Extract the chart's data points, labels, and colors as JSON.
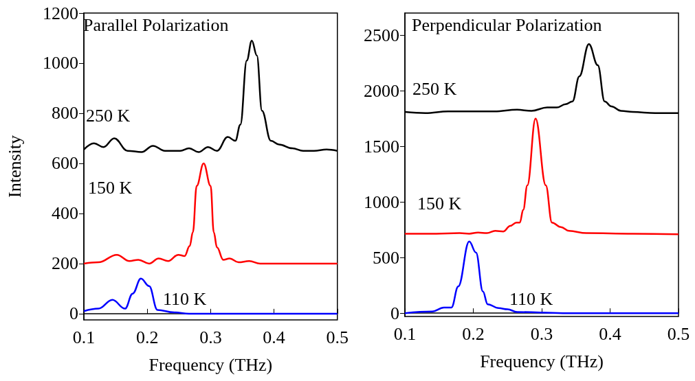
{
  "chart_data": [
    {
      "type": "line",
      "title": "Parallel Polarization",
      "annotations": [
        "250 K",
        "150 K",
        "110 K"
      ],
      "xlabel": "Frequency (THz)",
      "ylabel": "Intensity",
      "xlim": [
        0.1,
        0.5
      ],
      "xticks": [
        0.1,
        0.2,
        0.3,
        0.4,
        0.5
      ],
      "ylim": [
        -25,
        1200
      ],
      "yticks": [
        0,
        200,
        400,
        600,
        800,
        1000,
        1200
      ],
      "marker": "none",
      "series": [
        {
          "color": "#000000",
          "x": [
            0.1,
            0.116,
            0.131,
            0.148,
            0.169,
            0.191,
            0.209,
            0.228,
            0.252,
            0.266,
            0.281,
            0.296,
            0.31,
            0.327,
            0.339,
            0.347,
            0.357,
            0.365,
            0.373,
            0.381,
            0.395,
            0.408,
            0.429,
            0.446,
            0.463,
            0.483,
            0.5
          ],
          "values": [
            655,
            680,
            665,
            700,
            650,
            645,
            670,
            650,
            650,
            660,
            645,
            665,
            650,
            705,
            690,
            755,
            1010,
            1090,
            1030,
            810,
            690,
            675,
            660,
            650,
            650,
            655,
            650
          ]
        },
        {
          "color": "#ff0000",
          "x": [
            0.1,
            0.123,
            0.152,
            0.172,
            0.186,
            0.203,
            0.218,
            0.233,
            0.249,
            0.259,
            0.267,
            0.272,
            0.278,
            0.289,
            0.3,
            0.305,
            0.31,
            0.32,
            0.33,
            0.344,
            0.361,
            0.378,
            0.429,
            0.449,
            0.5
          ],
          "values": [
            200,
            205,
            235,
            210,
            215,
            200,
            220,
            210,
            235,
            230,
            270,
            325,
            510,
            600,
            510,
            325,
            265,
            215,
            220,
            205,
            210,
            200,
            200,
            200,
            200
          ]
        },
        {
          "color": "#0000ff",
          "x": [
            0.1,
            0.123,
            0.145,
            0.165,
            0.177,
            0.19,
            0.203,
            0.216,
            0.242,
            0.266,
            0.327,
            0.5
          ],
          "values": [
            10,
            20,
            55,
            20,
            80,
            140,
            110,
            15,
            5,
            0,
            0,
            0
          ]
        }
      ]
    },
    {
      "type": "line",
      "title": "Perpendicular Polarization",
      "annotations": [
        "250 K",
        "150 K",
        "110 K"
      ],
      "xlabel": "Frequency (THz)",
      "xlim": [
        0.1,
        0.5
      ],
      "xticks": [
        0.1,
        0.2,
        0.3,
        0.4,
        0.5
      ],
      "ylim": [
        -30,
        2700
      ],
      "yticks": [
        0,
        500,
        1000,
        1500,
        2000,
        2500
      ],
      "marker": "none",
      "series": [
        {
          "color": "#000000",
          "x": [
            0.1,
            0.13,
            0.163,
            0.197,
            0.231,
            0.264,
            0.285,
            0.308,
            0.322,
            0.335,
            0.345,
            0.355,
            0.369,
            0.382,
            0.392,
            0.402,
            0.416,
            0.433,
            0.466,
            0.5
          ],
          "values": [
            1810,
            1800,
            1815,
            1815,
            1815,
            1830,
            1820,
            1850,
            1850,
            1880,
            1905,
            2130,
            2420,
            2230,
            1905,
            1860,
            1820,
            1810,
            1800,
            1800
          ]
        },
        {
          "color": "#ff0000",
          "x": [
            0.1,
            0.146,
            0.18,
            0.194,
            0.207,
            0.22,
            0.232,
            0.244,
            0.254,
            0.263,
            0.268,
            0.273,
            0.279,
            0.291,
            0.306,
            0.315,
            0.328,
            0.34,
            0.365,
            0.433,
            0.5
          ],
          "values": [
            715,
            715,
            720,
            715,
            725,
            720,
            740,
            735,
            785,
            815,
            815,
            930,
            1150,
            1750,
            1150,
            815,
            775,
            740,
            720,
            715,
            710
          ]
        },
        {
          "color": "#0000ff",
          "x": [
            0.1,
            0.14,
            0.157,
            0.168,
            0.178,
            0.194,
            0.204,
            0.214,
            0.221,
            0.237,
            0.25,
            0.264,
            0.331,
            0.5
          ],
          "values": [
            0,
            15,
            50,
            50,
            240,
            645,
            545,
            195,
            80,
            45,
            35,
            10,
            0,
            0
          ]
        }
      ]
    }
  ]
}
